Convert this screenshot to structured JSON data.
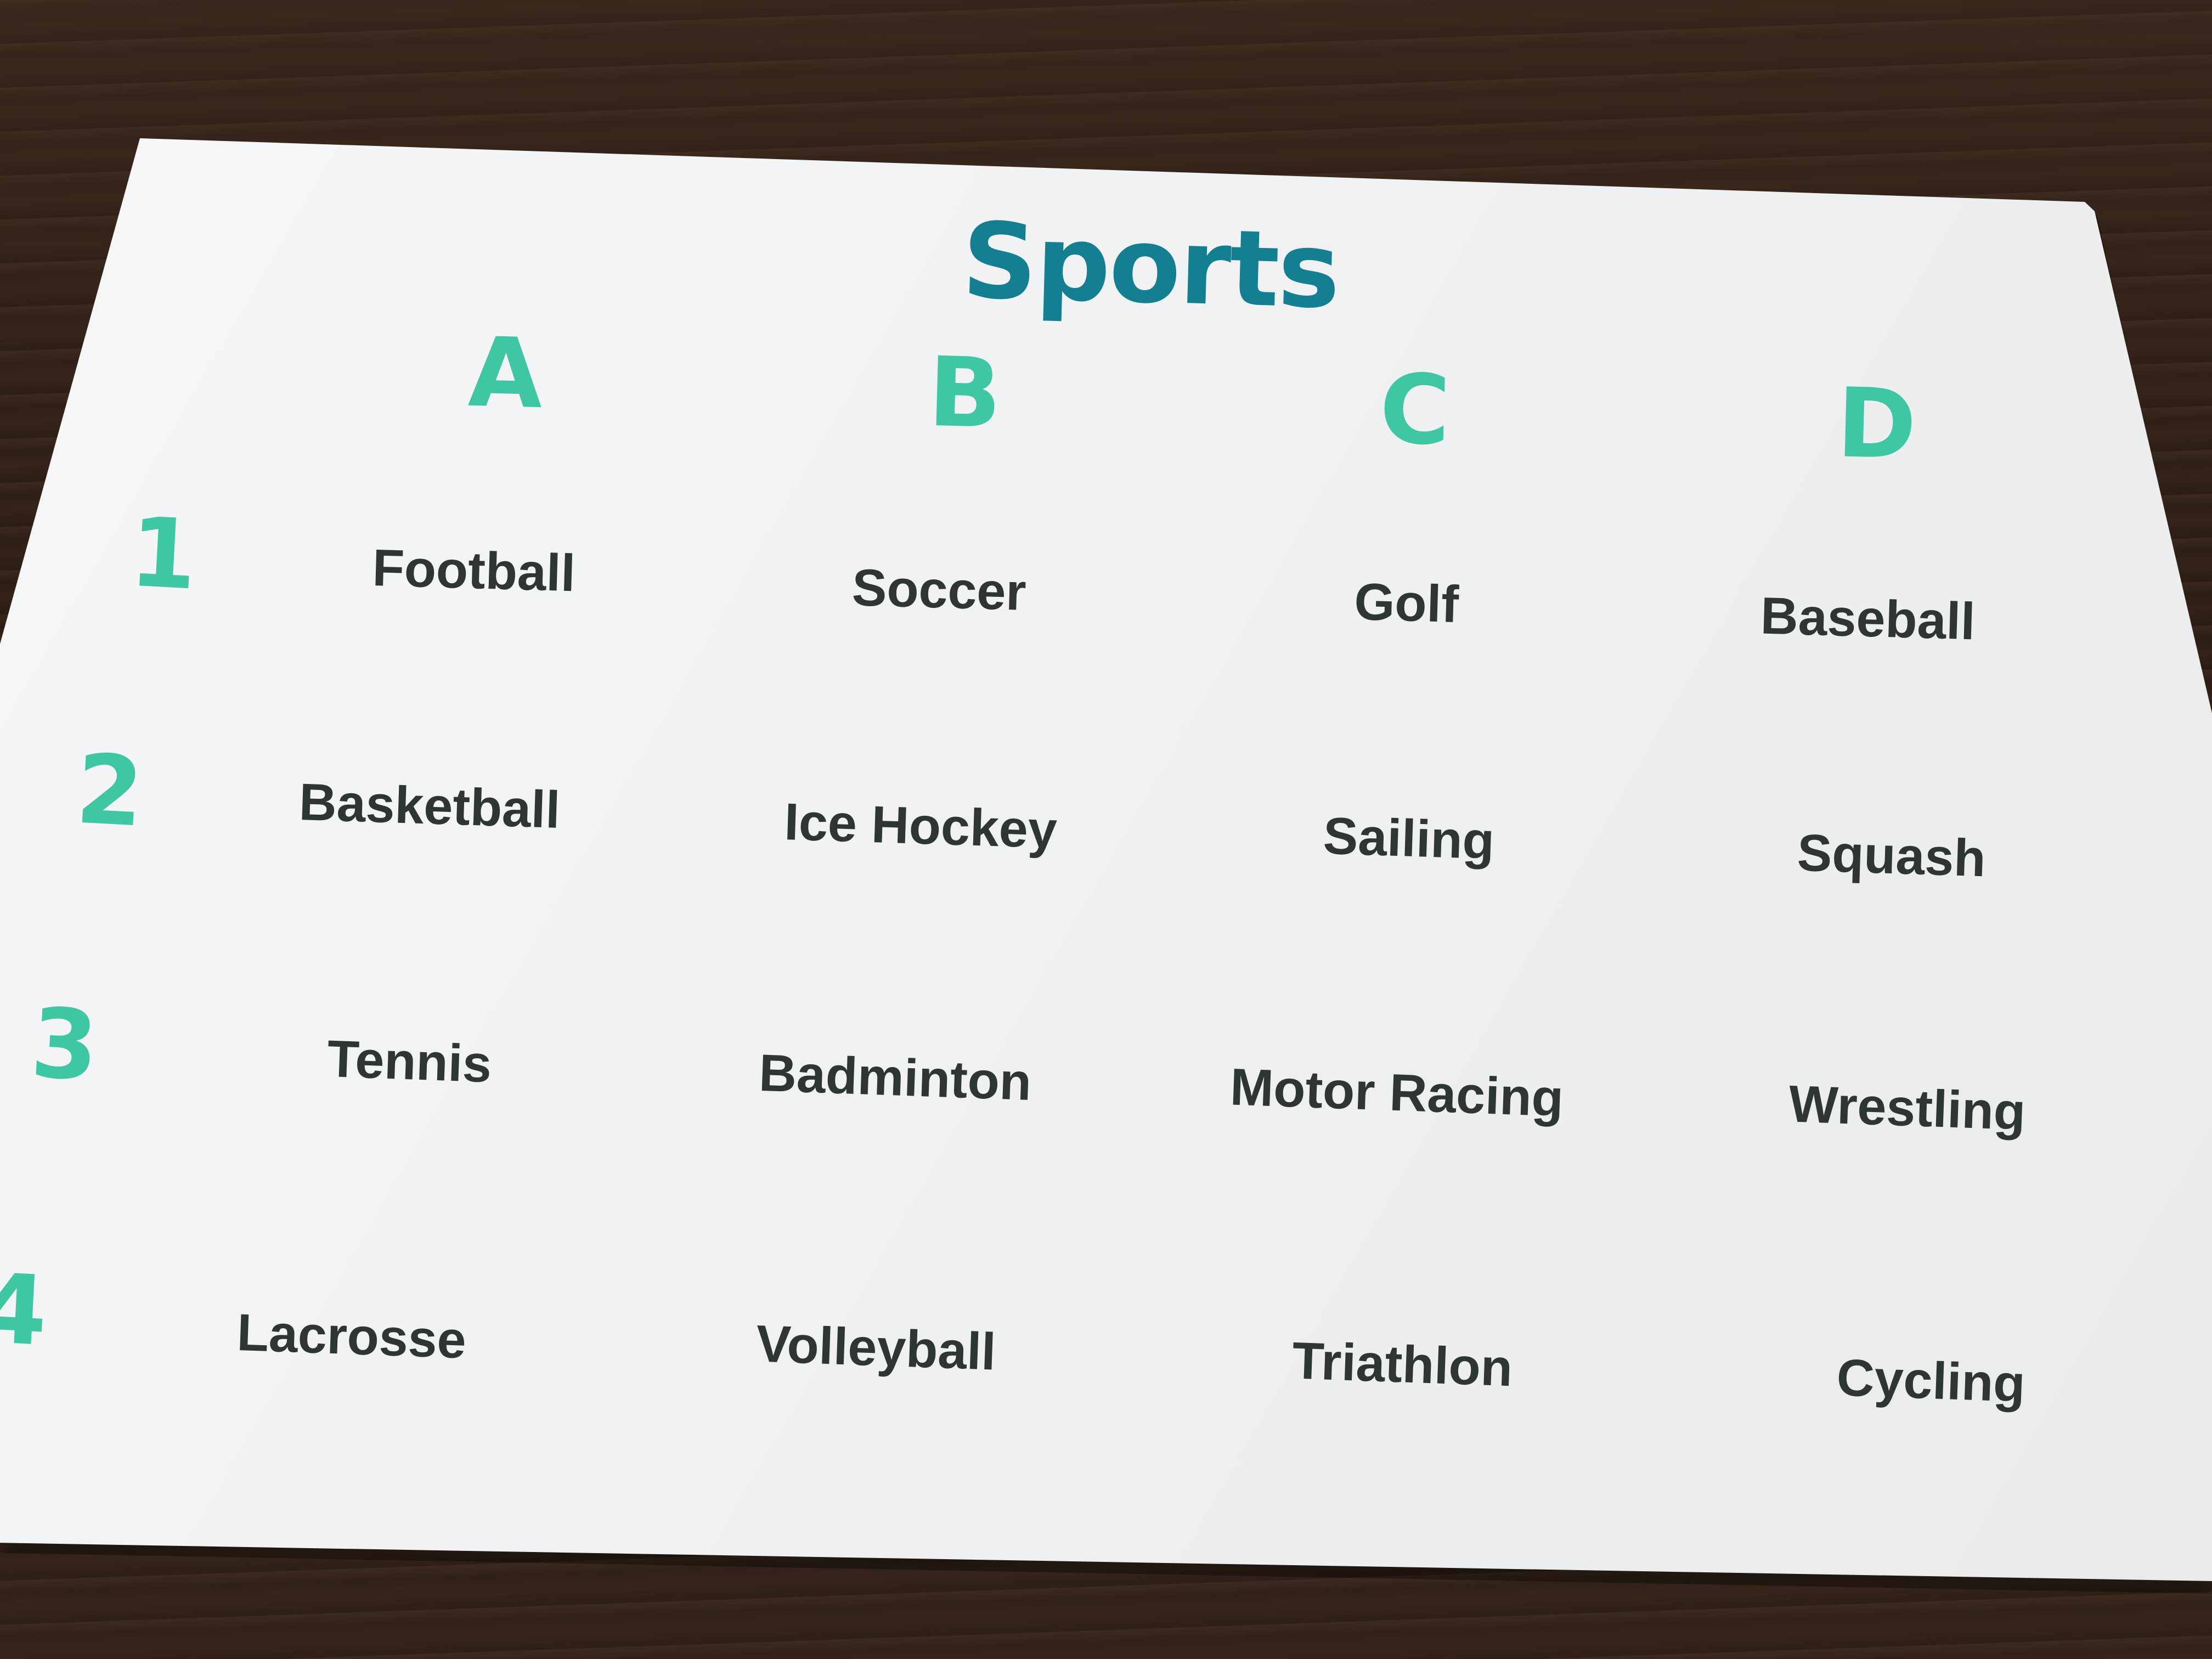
{
  "card": {
    "title": "Sports",
    "columns": [
      "A",
      "B",
      "C",
      "D"
    ],
    "rows": [
      "1",
      "2",
      "3",
      "4"
    ],
    "grid": [
      [
        "Football",
        "Soccer",
        "Golf",
        "Baseball"
      ],
      [
        "Basketball",
        "Ice Hockey",
        "Sailing",
        "Squash"
      ],
      [
        "Tennis",
        "Badminton",
        "Motor Racing",
        "Wrestling"
      ],
      [
        "Lacrosse",
        "Volleyball",
        "Triathlon",
        "Cycling"
      ]
    ],
    "colors": {
      "title": "#137f90",
      "header": "#3fc7a4",
      "cell_fill": "#a7e0d7",
      "cell_text": "#2e3535",
      "card": "#f2f3f4"
    }
  }
}
